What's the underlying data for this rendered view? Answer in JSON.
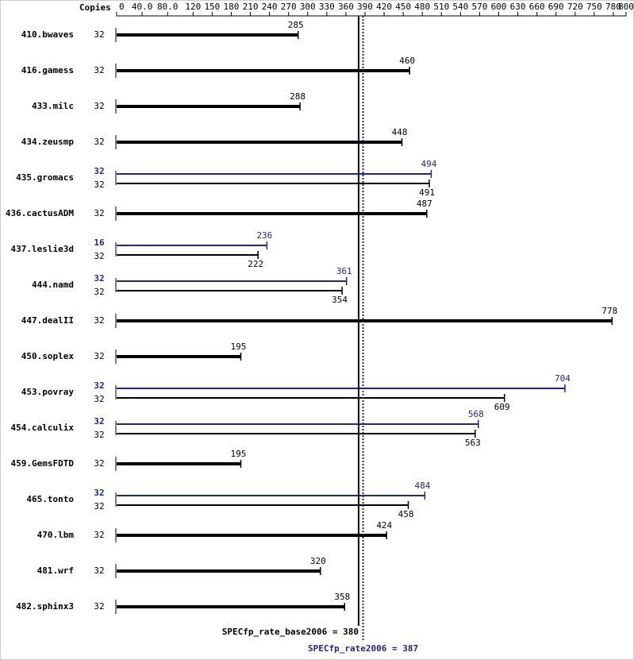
{
  "chart_data": {
    "type": "bar",
    "copies_header": "Copies",
    "xlim": [
      0,
      800
    ],
    "xticks": [
      0,
      {
        "value": 40,
        "label": "40.0"
      },
      {
        "value": 80,
        "label": "80.0"
      },
      120,
      150,
      180,
      210,
      240,
      270,
      300,
      330,
      360,
      390,
      420,
      450,
      480,
      510,
      540,
      570,
      600,
      630,
      660,
      690,
      720,
      750,
      780,
      800
    ],
    "base_color": "#000000",
    "peak_color": "#23238e",
    "rows": [
      {
        "label": "410.bwaves",
        "base": {
          "copies": 32,
          "value": 285
        }
      },
      {
        "label": "416.gamess",
        "base": {
          "copies": 32,
          "value": 460
        }
      },
      {
        "label": "433.milc",
        "base": {
          "copies": 32,
          "value": 288
        }
      },
      {
        "label": "434.zeusmp",
        "base": {
          "copies": 32,
          "value": 448
        }
      },
      {
        "label": "435.gromacs",
        "peak": {
          "copies": 32,
          "value": 494
        },
        "base": {
          "copies": 32,
          "value": 491
        }
      },
      {
        "label": "436.cactusADM",
        "base": {
          "copies": 32,
          "value": 487
        }
      },
      {
        "label": "437.leslie3d",
        "peak": {
          "copies": 16,
          "value": 236
        },
        "base": {
          "copies": 32,
          "value": 222
        }
      },
      {
        "label": "444.namd",
        "peak": {
          "copies": 32,
          "value": 361
        },
        "base": {
          "copies": 32,
          "value": 354
        }
      },
      {
        "label": "447.dealII",
        "base": {
          "copies": 32,
          "value": 778
        }
      },
      {
        "label": "450.soplex",
        "base": {
          "copies": 32,
          "value": 195
        }
      },
      {
        "label": "453.povray",
        "peak": {
          "copies": 32,
          "value": 704
        },
        "base": {
          "copies": 32,
          "value": 609
        }
      },
      {
        "label": "454.calculix",
        "peak": {
          "copies": 32,
          "value": 568
        },
        "base": {
          "copies": 32,
          "value": 563
        }
      },
      {
        "label": "459.GemsFDTD",
        "base": {
          "copies": 32,
          "value": 195
        }
      },
      {
        "label": "465.tonto",
        "peak": {
          "copies": 32,
          "value": 484
        },
        "base": {
          "copies": 32,
          "value": 458
        }
      },
      {
        "label": "470.lbm",
        "base": {
          "copies": 32,
          "value": 424
        }
      },
      {
        "label": "481.wrf",
        "base": {
          "copies": 32,
          "value": 320
        }
      },
      {
        "label": "482.sphinx3",
        "base": {
          "copies": 32,
          "value": 358
        }
      }
    ],
    "base_mean": {
      "label": "SPECfp_rate_base2006 = 380",
      "value": 380
    },
    "peak_mean": {
      "label": "SPECfp_rate2006 = 387",
      "value": 387
    }
  }
}
